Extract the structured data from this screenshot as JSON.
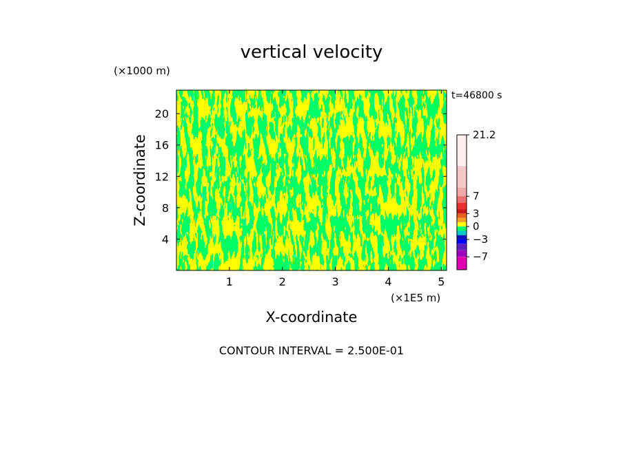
{
  "chart_data": {
    "type": "heatmap",
    "title": "vertical velocity",
    "xlabel": "X-coordinate",
    "ylabel": "Z-coordinate",
    "x_unit": "(×1E5 m)",
    "y_unit": "(×1000 m)",
    "time_label": "t=46800 s",
    "footer": "CONTOUR INTERVAL = 2.500E-01",
    "xlim": [
      0,
      5.1
    ],
    "ylim": [
      0,
      23
    ],
    "x_ticks": [
      1,
      2,
      3,
      4,
      5
    ],
    "y_ticks": [
      4,
      8,
      12,
      16,
      20
    ],
    "colorbar": {
      "labels": [
        "21.2",
        "7",
        "3",
        "0",
        "-3",
        "-7"
      ],
      "label_values": [
        21.2,
        7,
        3,
        0,
        -3,
        -7
      ],
      "segments": [
        {
          "from": 14,
          "to": 21.2,
          "color": "#fff0f0"
        },
        {
          "from": 9,
          "to": 14,
          "color": "#f4c8c8"
        },
        {
          "from": 7,
          "to": 9,
          "color": "#f0a8a8"
        },
        {
          "from": 5.5,
          "to": 7,
          "color": "#e87070"
        },
        {
          "from": 4,
          "to": 5.5,
          "color": "#e83030"
        },
        {
          "from": 3,
          "to": 4,
          "color": "#c81818"
        },
        {
          "from": 2,
          "to": 3,
          "color": "#e86020"
        },
        {
          "from": 1,
          "to": 2,
          "color": "#f0a020"
        },
        {
          "from": 0,
          "to": 1,
          "color": "#ffff00"
        },
        {
          "from": -1,
          "to": 0,
          "color": "#00ff66"
        },
        {
          "from": -2,
          "to": -1,
          "color": "#00c8c8"
        },
        {
          "from": -3,
          "to": -2,
          "color": "#1010c0"
        },
        {
          "from": -4,
          "to": -3,
          "color": "#0000ff"
        },
        {
          "from": -5.5,
          "to": -4,
          "color": "#6020c0"
        },
        {
          "from": -7,
          "to": -5.5,
          "color": "#a000c0"
        },
        {
          "from": -10,
          "to": -7,
          "color": "#e000b0"
        }
      ]
    },
    "field_colors": {
      "positive": "#ffff00",
      "negative": "#00ff66"
    }
  }
}
